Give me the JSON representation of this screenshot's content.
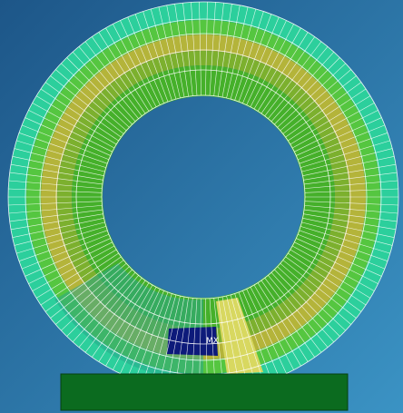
{
  "annotation": {
    "label": "MX"
  }
}
